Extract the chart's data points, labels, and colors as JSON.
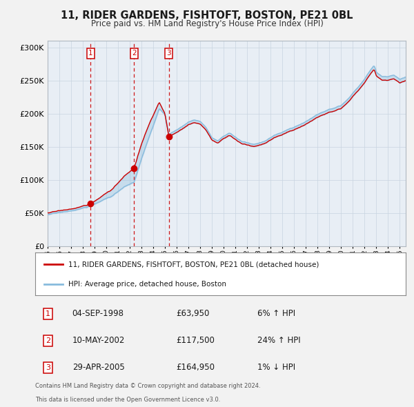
{
  "title": "11, RIDER GARDENS, FISHTOFT, BOSTON, PE21 0BL",
  "subtitle": "Price paid vs. HM Land Registry's House Price Index (HPI)",
  "background_color": "#f2f2f2",
  "plot_bg_color": "#e8eef5",
  "ylim": [
    0,
    310000
  ],
  "yticks": [
    0,
    50000,
    100000,
    150000,
    200000,
    250000,
    300000
  ],
  "ytick_labels": [
    "£0",
    "£50K",
    "£100K",
    "£150K",
    "£200K",
    "£250K",
    "£300K"
  ],
  "xlim_start": 1995.0,
  "xlim_end": 2025.5,
  "sale_dates": [
    1998.67,
    2002.36,
    2005.33
  ],
  "sale_prices": [
    63950,
    117500,
    164950
  ],
  "sale_labels": [
    "1",
    "2",
    "3"
  ],
  "red_line_color": "#cc0000",
  "blue_line_color": "#88bbdd",
  "vline_color": "#cc0000",
  "legend_line1": "11, RIDER GARDENS, FISHTOFT, BOSTON, PE21 0BL (detached house)",
  "legend_line2": "HPI: Average price, detached house, Boston",
  "table_rows": [
    {
      "num": "1",
      "date": "04-SEP-1998",
      "price": "£63,950",
      "change": "6% ↑ HPI"
    },
    {
      "num": "2",
      "date": "10-MAY-2002",
      "price": "£117,500",
      "change": "24% ↑ HPI"
    },
    {
      "num": "3",
      "date": "29-APR-2005",
      "price": "£164,950",
      "change": "1% ↓ HPI"
    }
  ],
  "footnote1": "Contains HM Land Registry data © Crown copyright and database right 2024.",
  "footnote2": "This data is licensed under the Open Government Licence v3.0."
}
